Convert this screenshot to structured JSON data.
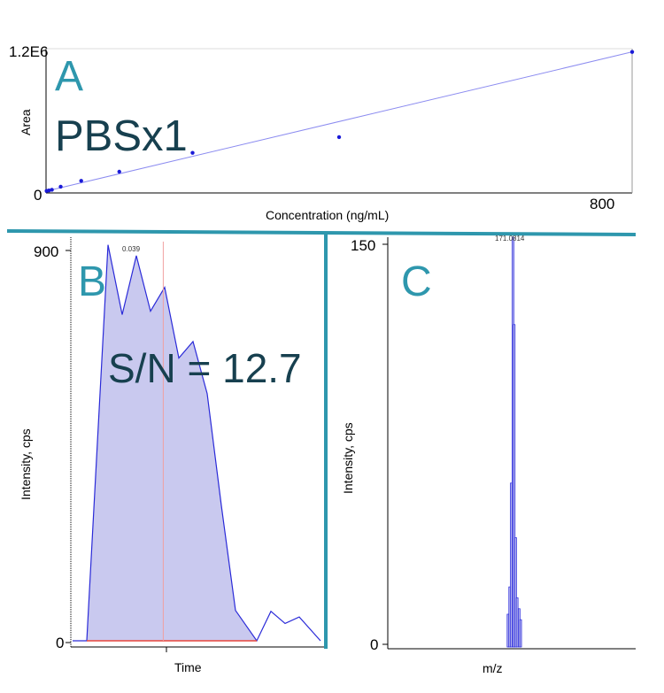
{
  "chart_data": [
    {
      "panel": "A",
      "type": "scatter",
      "annotation": "PBSx1",
      "xlabel": "Concentration (ng/mL)",
      "ylabel": "Area",
      "x_ticks": [
        "800"
      ],
      "y_ticks": [
        "0",
        "1.2E6"
      ],
      "xlim": [
        0,
        1000
      ],
      "ylim": [
        0,
        1200000
      ],
      "points": [
        {
          "x": 1,
          "y": 2000
        },
        {
          "x": 5,
          "y": 6000
        },
        {
          "x": 10,
          "y": 12000
        },
        {
          "x": 25,
          "y": 38000
        },
        {
          "x": 60,
          "y": 88000
        },
        {
          "x": 125,
          "y": 165000
        },
        {
          "x": 250,
          "y": 325000
        },
        {
          "x": 500,
          "y": 458000
        },
        {
          "x": 1000,
          "y": 1180000
        }
      ],
      "fit_line": {
        "x": [
          0,
          1000
        ],
        "y": [
          0,
          1180000
        ]
      }
    },
    {
      "panel": "B",
      "type": "area",
      "annotation": "S/N = 12.7",
      "peak_label": "0.039",
      "xlabel": "Time",
      "ylabel": "Intensity, cps",
      "y_ticks": [
        "0",
        "900"
      ],
      "xlim": [
        0,
        35
      ],
      "ylim": [
        0,
        900
      ],
      "x": [
        0,
        2,
        5,
        7,
        9,
        11,
        13,
        15,
        17,
        19,
        21,
        23,
        26,
        28,
        30,
        32,
        35
      ],
      "y": [
        0,
        0,
        913,
        752,
        888,
        760,
        815,
        652,
        690,
        570,
        312,
        70,
        0,
        68,
        40,
        55,
        0
      ],
      "baseline_color": "#e8453c",
      "marker_x": 12.8
    },
    {
      "panel": "C",
      "type": "bar",
      "peak_label": "171.0814",
      "xlabel": "m/z",
      "ylabel": "Intensity, cps",
      "y_ticks": [
        "0",
        "150"
      ],
      "xlim": [
        0,
        100
      ],
      "ylim": [
        0,
        150
      ],
      "x": [
        48.5,
        49.2,
        49.8,
        50.5,
        51.0,
        51.6,
        52.2,
        53.0,
        53.6
      ],
      "y": [
        12,
        22,
        60,
        150,
        118,
        40,
        18,
        14,
        10
      ]
    }
  ],
  "colors": {
    "accent": "#2e97ad",
    "text_dark": "#17404f",
    "data_blue": "#2222dd",
    "fill_blue": "#c9c9ef",
    "baseline_red": "#e8453c"
  }
}
